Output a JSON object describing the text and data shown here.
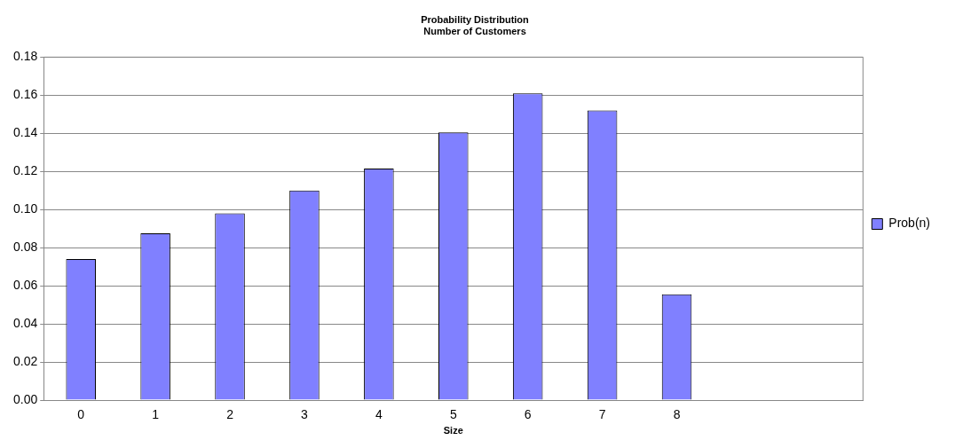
{
  "chart_data": {
    "type": "bar",
    "title": "Probability Distribution",
    "subtitle": "Number of Customers",
    "xlabel": "Size",
    "categories": [
      "0",
      "1",
      "2",
      "3",
      "4",
      "5",
      "6",
      "7",
      "8",
      null,
      null
    ],
    "series": [
      {
        "name": "Prob(n)",
        "color": "#8080ff",
        "values": [
          0.074,
          0.0875,
          0.098,
          0.11,
          0.1215,
          0.1405,
          0.161,
          0.152,
          0.0555,
          null,
          null
        ]
      }
    ],
    "ylim": [
      0,
      0.18
    ],
    "yticks": [
      {
        "value": 0,
        "label": "0.00"
      },
      {
        "value": 0.02,
        "label": "0.02"
      },
      {
        "value": 0.04,
        "label": "0.04"
      },
      {
        "value": 0.06,
        "label": "0.06"
      },
      {
        "value": 0.08,
        "label": "0.08"
      },
      {
        "value": 0.1,
        "label": "0.10"
      },
      {
        "value": 0.12,
        "label": "0.12"
      },
      {
        "value": 0.14,
        "label": "0.14"
      },
      {
        "value": 0.16,
        "label": "0.16"
      },
      {
        "value": 0.18,
        "label": "0.18"
      }
    ],
    "grid": "y",
    "legend": "right"
  }
}
